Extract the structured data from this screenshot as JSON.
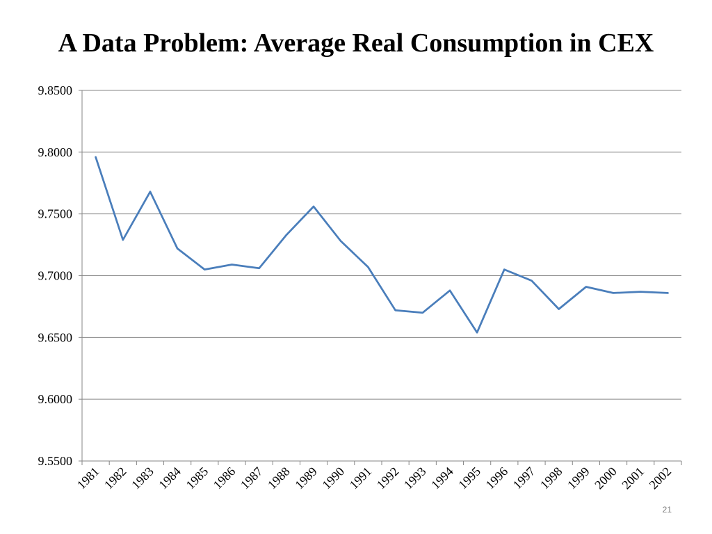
{
  "slide": {
    "title": "A Data Problem:  Average Real Consumption in CEX",
    "number": "21"
  },
  "chart_data": {
    "type": "line",
    "title": "",
    "xlabel": "",
    "ylabel": "",
    "ylim": [
      9.55,
      9.85
    ],
    "ytick_step": 0.05,
    "ytick_labels": [
      "9.5500",
      "9.6000",
      "9.6500",
      "9.7000",
      "9.7500",
      "9.8000",
      "9.8500"
    ],
    "grid": "horizontal",
    "legend": "none",
    "categories": [
      "1981",
      "1982",
      "1983",
      "1984",
      "1985",
      "1986",
      "1987",
      "1988",
      "1989",
      "1990",
      "1991",
      "1992",
      "1993",
      "1994",
      "1995",
      "1996",
      "1997",
      "1998",
      "1999",
      "2000",
      "2001",
      "2002"
    ],
    "series": [
      {
        "values": [
          9.796,
          9.729,
          9.768,
          9.722,
          9.705,
          9.709,
          9.706,
          9.733,
          9.756,
          9.728,
          9.707,
          9.672,
          9.67,
          9.688,
          9.654,
          9.705,
          9.696,
          9.673,
          9.691,
          9.686,
          9.687,
          9.686
        ],
        "color": "#4a7ebb"
      }
    ],
    "colors": {
      "grid": "#868686",
      "axis": "#868686",
      "line": "#4a7ebb"
    }
  }
}
